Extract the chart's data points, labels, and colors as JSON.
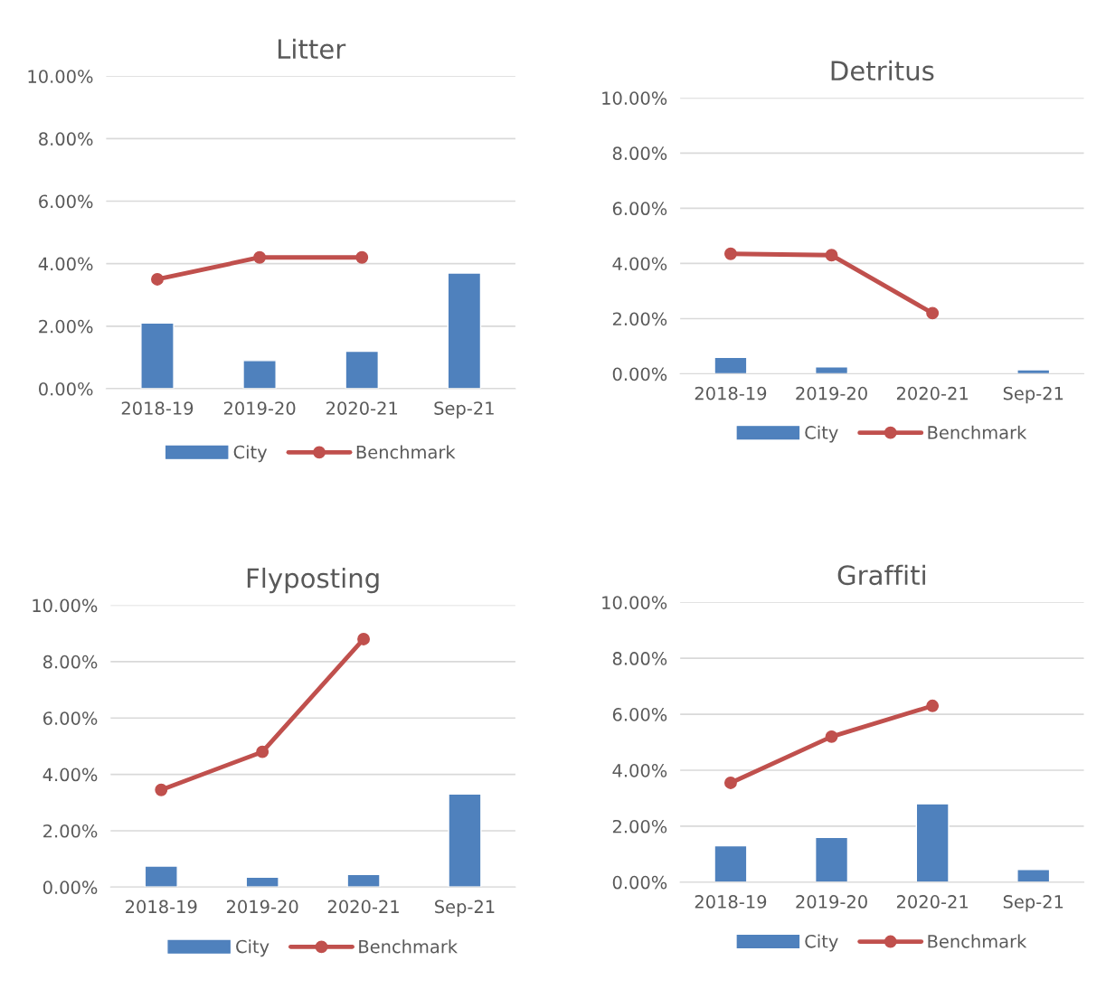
{
  "chart_data": [
    {
      "type": "bar",
      "title": "Litter",
      "categories": [
        "2018-19",
        "2019-20",
        "2020-21",
        "Sep-21"
      ],
      "ylim": [
        0,
        10
      ],
      "yticks": [
        {
          "value": 0,
          "label": "0.00%"
        },
        {
          "value": 2,
          "label": "2.00%"
        },
        {
          "value": 4,
          "label": "4.00%"
        },
        {
          "value": 6,
          "label": "6.00%"
        },
        {
          "value": 8,
          "label": "8.00%"
        },
        {
          "value": 10,
          "label": "10.00%"
        }
      ],
      "grid": "y",
      "legend": "bottom",
      "marker": "circle",
      "series": [
        {
          "name": "City",
          "color": "#4f81bd",
          "values": [
            2.1,
            0.9,
            1.2,
            3.7
          ]
        },
        {
          "name": "Benchmark",
          "type": "line",
          "color": "#c0504d",
          "values": [
            3.5,
            4.2,
            4.2,
            null
          ]
        }
      ]
    },
    {
      "type": "bar",
      "title": "Detritus",
      "categories": [
        "2018-19",
        "2019-20",
        "2020-21",
        "Sep-21"
      ],
      "ylim": [
        0,
        10
      ],
      "yticks": [
        {
          "value": 0,
          "label": "0.00%"
        },
        {
          "value": 2,
          "label": "2.00%"
        },
        {
          "value": 4,
          "label": "4.00%"
        },
        {
          "value": 6,
          "label": "6.00%"
        },
        {
          "value": 8,
          "label": "8.00%"
        },
        {
          "value": 10,
          "label": "10.00%"
        }
      ],
      "grid": "y",
      "legend": "bottom",
      "marker": "circle",
      "series": [
        {
          "name": "City",
          "color": "#4f81bd",
          "values": [
            0.6,
            0.25,
            null,
            0.15
          ]
        },
        {
          "name": "Benchmark",
          "type": "line",
          "color": "#c0504d",
          "values": [
            4.35,
            4.3,
            2.2,
            null
          ]
        }
      ]
    },
    {
      "type": "bar",
      "title": "Flyposting",
      "categories": [
        "2018-19",
        "2019-20",
        "2020-21",
        "Sep-21"
      ],
      "ylim": [
        0,
        10
      ],
      "yticks": [
        {
          "value": 0,
          "label": "0.00%"
        },
        {
          "value": 2,
          "label": "2.00%"
        },
        {
          "value": 4,
          "label": "4.00%"
        },
        {
          "value": 6,
          "label": "6.00%"
        },
        {
          "value": 8,
          "label": "8.00%"
        },
        {
          "value": 10,
          "label": "10.00%"
        }
      ],
      "grid": "y",
      "legend": "bottom",
      "marker": "circle",
      "series": [
        {
          "name": "City",
          "color": "#4f81bd",
          "values": [
            0.75,
            0.35,
            0.45,
            3.3
          ]
        },
        {
          "name": "Benchmark",
          "type": "line",
          "color": "#c0504d",
          "values": [
            3.45,
            4.8,
            8.8,
            null
          ]
        }
      ]
    },
    {
      "type": "bar",
      "title": "Graffiti",
      "categories": [
        "2018-19",
        "2019-20",
        "2020-21",
        "Sep-21"
      ],
      "ylim": [
        0,
        10
      ],
      "yticks": [
        {
          "value": 0,
          "label": "0.00%"
        },
        {
          "value": 2,
          "label": "2.00%"
        },
        {
          "value": 4,
          "label": "4.00%"
        },
        {
          "value": 6,
          "label": "6.00%"
        },
        {
          "value": 8,
          "label": "8.00%"
        },
        {
          "value": 10,
          "label": "10.00%"
        }
      ],
      "grid": "y",
      "legend": "bottom",
      "marker": "circle",
      "series": [
        {
          "name": "City",
          "color": "#4f81bd",
          "values": [
            1.3,
            1.6,
            2.8,
            0.45
          ]
        },
        {
          "name": "Benchmark",
          "type": "line",
          "color": "#c0504d",
          "values": [
            3.55,
            5.2,
            6.3,
            null
          ]
        }
      ]
    }
  ]
}
